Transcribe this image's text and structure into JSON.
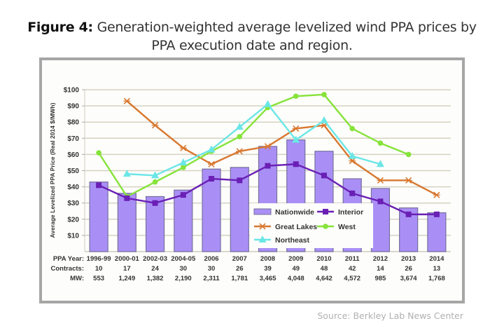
{
  "figure": {
    "title_prefix": "Figure 4:",
    "title_rest_line1": " Generation-weighted average levelized wind PPA prices by",
    "title_line2": "PPA execution date and region.",
    "source": "Source: Berkley Lab News Center"
  },
  "chart_data": {
    "type": "bar",
    "title": "Generation-weighted average levelized wind PPA prices by PPA execution date and region.",
    "xlabel": "PPA Year",
    "ylabel": "Average Levelized PPA Price (Real 2014 $/MWh)",
    "ylim": [
      0,
      100
    ],
    "yticks": [
      10,
      20,
      30,
      40,
      50,
      60,
      70,
      80,
      90,
      100
    ],
    "ytick_labels": [
      "$10",
      "$20",
      "$30",
      "$40",
      "$50",
      "$60",
      "$70",
      "$80",
      "$90",
      "$100"
    ],
    "grid": true,
    "legend_position": "lower-center-inside",
    "categories": [
      "1996-99",
      "2000-01",
      "2002-03",
      "2004-05",
      "2006",
      "2007",
      "2008",
      "2009",
      "2010",
      "2011",
      "2012",
      "2013",
      "2014"
    ],
    "row_labels": {
      "year": "PPA Year:",
      "contracts": "Contracts:",
      "mw": "MW:"
    },
    "contracts": [
      "10",
      "17",
      "24",
      "30",
      "30",
      "26",
      "39",
      "49",
      "48",
      "42",
      "14",
      "26",
      "13"
    ],
    "mw": [
      "553",
      "1,249",
      "1,382",
      "2,190",
      "2,311",
      "1,781",
      "3,465",
      "4,048",
      "4,642",
      "4,572",
      "985",
      "3,674",
      "1,768"
    ],
    "series": [
      {
        "name": "Nationwide",
        "kind": "bar",
        "color": "#a98ff5",
        "values": [
          43,
          36,
          34,
          38,
          51,
          52,
          65,
          69,
          62,
          45,
          39,
          27,
          24
        ]
      },
      {
        "name": "Interior",
        "kind": "line",
        "marker": "square",
        "color": "#6a1fb5",
        "values": [
          41,
          33,
          30,
          35,
          45,
          44,
          53,
          54,
          47,
          36,
          31,
          23,
          23
        ]
      },
      {
        "name": "Great Lakes",
        "kind": "line",
        "marker": "x",
        "color": "#d8772f",
        "values": [
          null,
          93,
          78,
          64,
          54,
          62,
          65,
          76,
          78,
          56,
          44,
          44,
          35
        ]
      },
      {
        "name": "West",
        "kind": "line",
        "marker": "circle",
        "color": "#86e33a",
        "values": [
          61,
          34,
          43,
          52,
          62,
          71,
          89,
          96,
          97,
          76,
          67,
          60,
          null
        ]
      },
      {
        "name": "Northeast",
        "kind": "line",
        "marker": "triangle",
        "color": "#6be6e6",
        "values": [
          null,
          48,
          47,
          55,
          63,
          77,
          91,
          69,
          81,
          59,
          54,
          null,
          null
        ]
      }
    ]
  }
}
